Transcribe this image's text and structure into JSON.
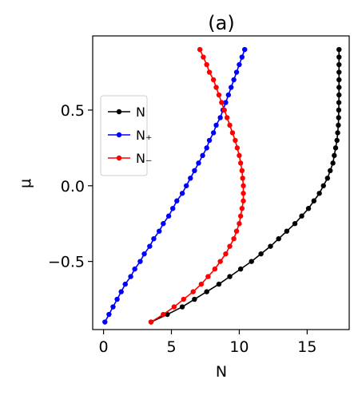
{
  "chart_data": {
    "type": "line",
    "title": "(a)",
    "xlabel": "N",
    "ylabel": "μ",
    "xlim": [
      -0.8,
      18.1
    ],
    "ylim": [
      -0.95,
      0.99
    ],
    "xticks": [
      0,
      5,
      10,
      15
    ],
    "xtick_labels": [
      "0",
      "5",
      "10",
      "15"
    ],
    "yticks": [
      -0.5,
      0.0,
      0.5
    ],
    "ytick_labels": [
      "−0.5",
      "0.0",
      "0.5"
    ],
    "legend_position": "left-center",
    "grid": false,
    "series": [
      {
        "name": "N",
        "color": "#000000",
        "points": [
          [
            3.5,
            -0.9
          ],
          [
            4.7,
            -0.85
          ],
          [
            5.8,
            -0.8
          ],
          [
            6.7,
            -0.75
          ],
          [
            7.6,
            -0.7
          ],
          [
            8.5,
            -0.65
          ],
          [
            9.3,
            -0.6
          ],
          [
            10.1,
            -0.55
          ],
          [
            10.9,
            -0.5
          ],
          [
            11.6,
            -0.45
          ],
          [
            12.3,
            -0.4
          ],
          [
            12.9,
            -0.35
          ],
          [
            13.5,
            -0.3
          ],
          [
            14.1,
            -0.25
          ],
          [
            14.6,
            -0.2
          ],
          [
            15.1,
            -0.15
          ],
          [
            15.5,
            -0.1
          ],
          [
            15.9,
            -0.05
          ],
          [
            16.2,
            0.0
          ],
          [
            16.5,
            0.05
          ],
          [
            16.7,
            0.1
          ],
          [
            16.9,
            0.15
          ],
          [
            17.0,
            0.2
          ],
          [
            17.1,
            0.25
          ],
          [
            17.2,
            0.3
          ],
          [
            17.25,
            0.35
          ],
          [
            17.3,
            0.4
          ],
          [
            17.32,
            0.45
          ],
          [
            17.33,
            0.5
          ],
          [
            17.34,
            0.55
          ],
          [
            17.35,
            0.6
          ],
          [
            17.35,
            0.65
          ],
          [
            17.35,
            0.7
          ],
          [
            17.35,
            0.75
          ],
          [
            17.35,
            0.8
          ],
          [
            17.35,
            0.85
          ],
          [
            17.35,
            0.9
          ]
        ]
      },
      {
        "name": "N₊",
        "color": "#0000ff",
        "points": [
          [
            0.1,
            -0.9
          ],
          [
            0.4,
            -0.85
          ],
          [
            0.7,
            -0.8
          ],
          [
            1.0,
            -0.75
          ],
          [
            1.3,
            -0.7
          ],
          [
            1.6,
            -0.65
          ],
          [
            2.0,
            -0.6
          ],
          [
            2.3,
            -0.55
          ],
          [
            2.7,
            -0.5
          ],
          [
            3.0,
            -0.45
          ],
          [
            3.4,
            -0.4
          ],
          [
            3.7,
            -0.35
          ],
          [
            4.1,
            -0.3
          ],
          [
            4.4,
            -0.25
          ],
          [
            4.8,
            -0.2
          ],
          [
            5.1,
            -0.15
          ],
          [
            5.4,
            -0.1
          ],
          [
            5.8,
            -0.05
          ],
          [
            6.1,
            0.0
          ],
          [
            6.4,
            0.05
          ],
          [
            6.7,
            0.1
          ],
          [
            7.0,
            0.15
          ],
          [
            7.3,
            0.2
          ],
          [
            7.6,
            0.25
          ],
          [
            7.8,
            0.3
          ],
          [
            8.1,
            0.35
          ],
          [
            8.3,
            0.4
          ],
          [
            8.6,
            0.45
          ],
          [
            8.8,
            0.5
          ],
          [
            9.0,
            0.55
          ],
          [
            9.2,
            0.6
          ],
          [
            9.4,
            0.65
          ],
          [
            9.6,
            0.7
          ],
          [
            9.8,
            0.75
          ],
          [
            10.0,
            0.8
          ],
          [
            10.2,
            0.85
          ],
          [
            10.4,
            0.9
          ]
        ]
      },
      {
        "name": "N₋",
        "color": "#ff0000",
        "points": [
          [
            3.5,
            -0.9
          ],
          [
            4.4,
            -0.85
          ],
          [
            5.2,
            -0.8
          ],
          [
            5.9,
            -0.75
          ],
          [
            6.6,
            -0.7
          ],
          [
            7.2,
            -0.65
          ],
          [
            7.7,
            -0.6
          ],
          [
            8.2,
            -0.55
          ],
          [
            8.6,
            -0.5
          ],
          [
            9.0,
            -0.45
          ],
          [
            9.3,
            -0.4
          ],
          [
            9.6,
            -0.35
          ],
          [
            9.8,
            -0.3
          ],
          [
            10.0,
            -0.25
          ],
          [
            10.1,
            -0.2
          ],
          [
            10.2,
            -0.15
          ],
          [
            10.3,
            -0.1
          ],
          [
            10.3,
            -0.05
          ],
          [
            10.3,
            0.0
          ],
          [
            10.25,
            0.05
          ],
          [
            10.2,
            0.1
          ],
          [
            10.1,
            0.15
          ],
          [
            10.0,
            0.2
          ],
          [
            9.85,
            0.25
          ],
          [
            9.7,
            0.3
          ],
          [
            9.5,
            0.35
          ],
          [
            9.3,
            0.4
          ],
          [
            9.1,
            0.45
          ],
          [
            8.9,
            0.5
          ],
          [
            8.7,
            0.55
          ],
          [
            8.5,
            0.6
          ],
          [
            8.3,
            0.65
          ],
          [
            8.1,
            0.7
          ],
          [
            7.8,
            0.75
          ],
          [
            7.6,
            0.8
          ],
          [
            7.35,
            0.85
          ],
          [
            7.1,
            0.9
          ]
        ]
      }
    ]
  }
}
